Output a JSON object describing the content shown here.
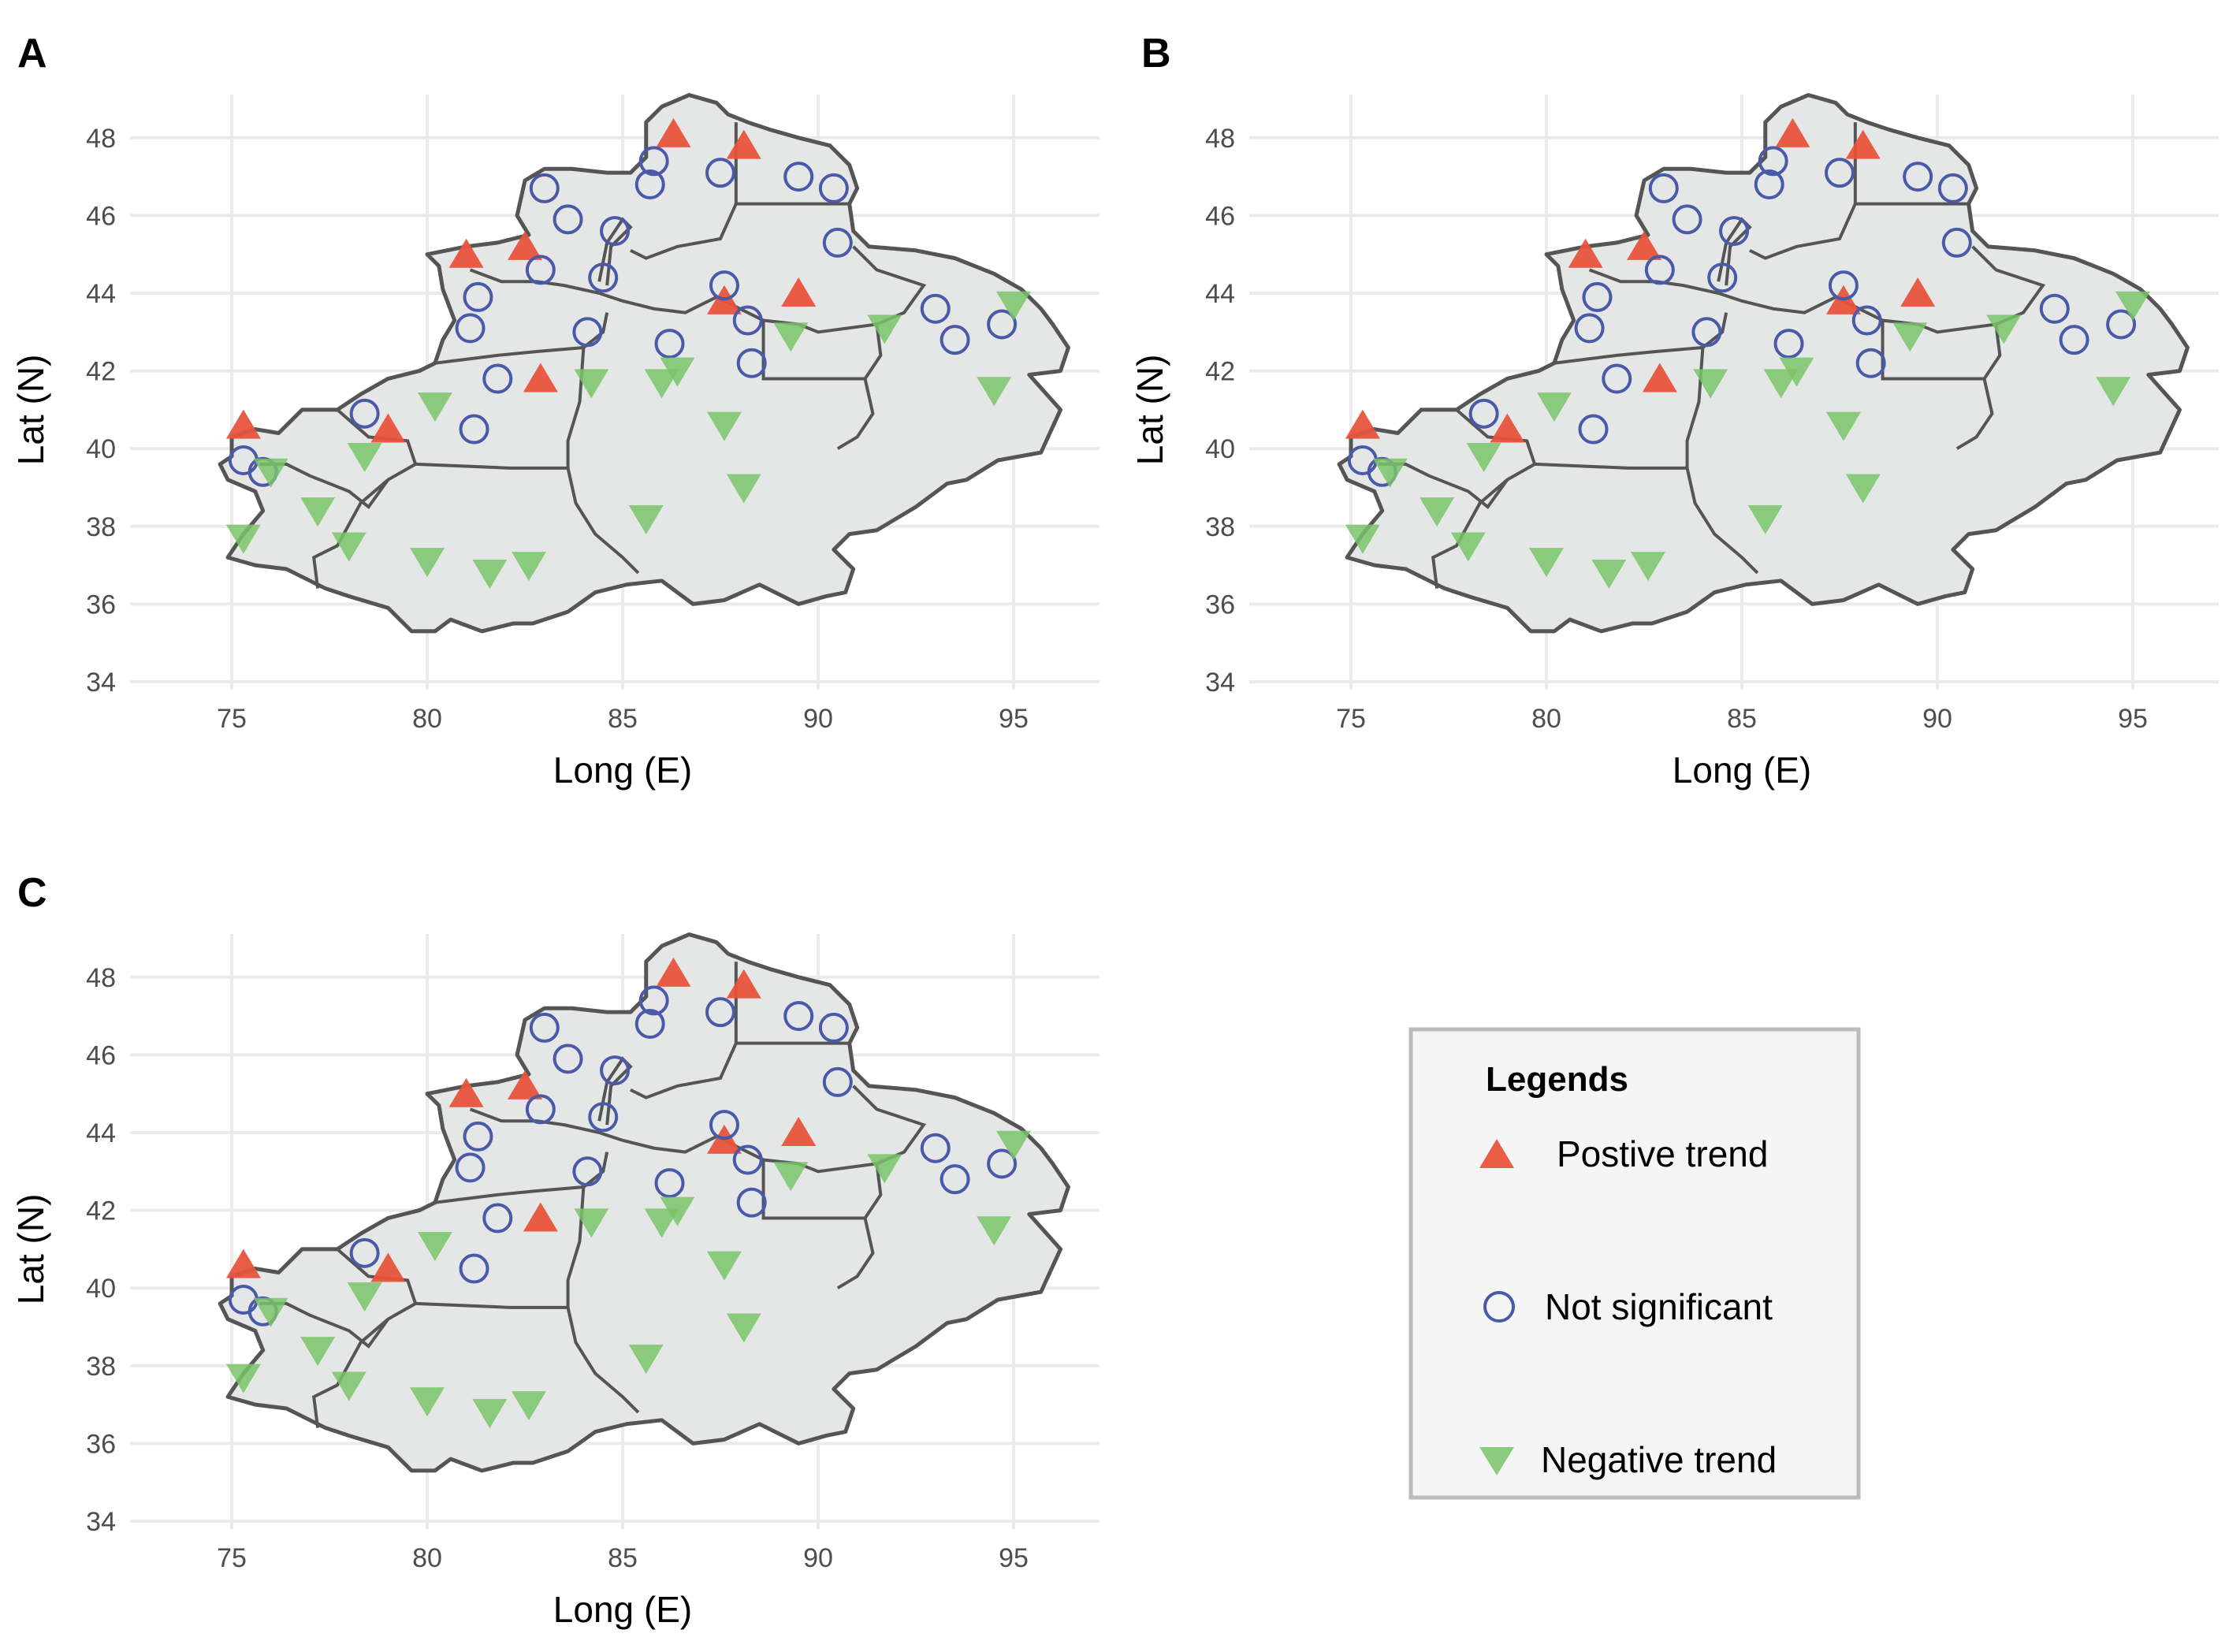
{
  "panels": [
    {
      "id": "A",
      "label": "A"
    },
    {
      "id": "B",
      "label": "B"
    },
    {
      "id": "C",
      "label": "C"
    }
  ],
  "axes": {
    "xlabel": "Long (E)",
    "ylabel": "Lat (N)",
    "x_ticks": [
      "75",
      "80",
      "85",
      "90",
      "95"
    ],
    "y_ticks": [
      "34",
      "36",
      "38",
      "40",
      "42",
      "44",
      "46",
      "48"
    ],
    "x_range": [
      72.5,
      97.5
    ],
    "y_range": [
      33.8,
      49.5
    ]
  },
  "legend": {
    "title": "Legends",
    "items": [
      {
        "key": "positive",
        "label": "Postive trend",
        "shape": "triangle-up",
        "color": "#e8543c"
      },
      {
        "key": "ns",
        "label": "Not significant",
        "shape": "circle-open",
        "color": "#4b5aa8"
      },
      {
        "key": "negative",
        "label": "Negative trend",
        "shape": "triangle-down",
        "color": "#7ac468"
      }
    ]
  },
  "chart_data": [
    {
      "type": "scatter",
      "panel": "A",
      "title": "",
      "xlabel": "Long (E)",
      "ylabel": "Lat (N)",
      "xlim": [
        72.5,
        97.5
      ],
      "ylim": [
        33.8,
        49.5
      ],
      "series": [
        {
          "name": "Postive trend",
          "x": [
            86.3,
            88.1,
            81.0,
            82.5,
            87.6,
            89.5,
            82.9,
            75.3,
            79.0
          ],
          "y": [
            48.1,
            47.8,
            45.0,
            45.2,
            43.8,
            44.0,
            41.8,
            40.6,
            40.5
          ]
        },
        {
          "name": "Not significant",
          "x": [
            85.8,
            85.7,
            87.5,
            89.5,
            90.4,
            83.0,
            83.6,
            84.8,
            82.9,
            84.5,
            90.5,
            81.3,
            81.1,
            84.1,
            87.6,
            88.2,
            86.2,
            88.3,
            93.0,
            93.5,
            94.7,
            81.8,
            78.4,
            81.2,
            75.3,
            75.8
          ],
          "y": [
            47.4,
            46.8,
            47.1,
            47.0,
            46.7,
            46.7,
            45.9,
            45.6,
            44.6,
            44.4,
            45.3,
            43.9,
            43.1,
            43.0,
            44.2,
            43.3,
            42.7,
            42.2,
            43.6,
            42.8,
            43.2,
            41.8,
            40.9,
            40.5,
            39.7,
            39.4
          ]
        },
        {
          "name": "Negative trend",
          "x": [
            95.0,
            91.7,
            89.3,
            94.5,
            86.4,
            86.0,
            84.2,
            80.2,
            78.4,
            87.6,
            88.1,
            85.6,
            76.0,
            77.2,
            75.3,
            78.0,
            80.0,
            81.6,
            82.6
          ],
          "y": [
            43.7,
            43.1,
            42.9,
            41.5,
            42.0,
            41.7,
            41.7,
            41.1,
            39.8,
            40.6,
            39.0,
            38.2,
            39.4,
            38.4,
            37.7,
            37.5,
            37.1,
            36.8,
            37.0
          ]
        }
      ]
    },
    {
      "type": "scatter",
      "panel": "B",
      "title": "",
      "xlabel": "Long (E)",
      "ylabel": "Lat (N)",
      "xlim": [
        72.5,
        97.5
      ],
      "ylim": [
        33.8,
        49.5
      ],
      "series": [
        {
          "name": "Postive trend",
          "x": [
            86.3,
            88.1,
            81.0,
            82.5,
            87.6,
            89.5,
            82.9,
            75.3,
            79.0
          ],
          "y": [
            48.1,
            47.8,
            45.0,
            45.2,
            43.8,
            44.0,
            41.8,
            40.6,
            40.5
          ]
        },
        {
          "name": "Not significant",
          "x": [
            85.8,
            85.7,
            87.5,
            89.5,
            90.4,
            83.0,
            83.6,
            84.8,
            82.9,
            84.5,
            90.5,
            81.3,
            81.1,
            84.1,
            87.6,
            88.2,
            86.2,
            88.3,
            93.0,
            93.5,
            94.7,
            81.8,
            78.4,
            81.2,
            75.3,
            75.8
          ],
          "y": [
            47.4,
            46.8,
            47.1,
            47.0,
            46.7,
            46.7,
            45.9,
            45.6,
            44.6,
            44.4,
            45.3,
            43.9,
            43.1,
            43.0,
            44.2,
            43.3,
            42.7,
            42.2,
            43.6,
            42.8,
            43.2,
            41.8,
            40.9,
            40.5,
            39.7,
            39.4
          ]
        },
        {
          "name": "Negative trend",
          "x": [
            95.0,
            91.7,
            89.3,
            94.5,
            86.4,
            86.0,
            84.2,
            80.2,
            78.4,
            87.6,
            88.1,
            85.6,
            76.0,
            77.2,
            75.3,
            78.0,
            80.0,
            81.6,
            82.6
          ],
          "y": [
            43.7,
            43.1,
            42.9,
            41.5,
            42.0,
            41.7,
            41.7,
            41.1,
            39.8,
            40.6,
            39.0,
            38.2,
            39.4,
            38.4,
            37.7,
            37.5,
            37.1,
            36.8,
            37.0
          ]
        }
      ]
    },
    {
      "type": "scatter",
      "panel": "C",
      "title": "",
      "xlabel": "Long (E)",
      "ylabel": "Lat (N)",
      "xlim": [
        72.5,
        97.5
      ],
      "ylim": [
        33.8,
        49.5
      ],
      "series": [
        {
          "name": "Postive trend",
          "x": [
            86.3,
            88.1,
            81.0,
            82.5,
            87.6,
            89.5,
            82.9,
            75.3,
            79.0
          ],
          "y": [
            48.1,
            47.8,
            45.0,
            45.2,
            43.8,
            44.0,
            41.8,
            40.6,
            40.5
          ]
        },
        {
          "name": "Not significant",
          "x": [
            85.8,
            85.7,
            87.5,
            89.5,
            90.4,
            83.0,
            83.6,
            84.8,
            82.9,
            84.5,
            90.5,
            81.3,
            81.1,
            84.1,
            87.6,
            88.2,
            86.2,
            88.3,
            93.0,
            93.5,
            94.7,
            81.8,
            78.4,
            81.2,
            75.3,
            75.8
          ],
          "y": [
            47.4,
            46.8,
            47.1,
            47.0,
            46.7,
            46.7,
            45.9,
            45.6,
            44.6,
            44.4,
            45.3,
            43.9,
            43.1,
            43.0,
            44.2,
            43.3,
            42.7,
            42.2,
            43.6,
            42.8,
            43.2,
            41.8,
            40.9,
            40.5,
            39.7,
            39.4
          ]
        },
        {
          "name": "Negative trend",
          "x": [
            95.0,
            91.7,
            89.3,
            94.5,
            86.4,
            86.0,
            84.2,
            80.2,
            78.4,
            87.6,
            88.1,
            85.6,
            76.0,
            77.2,
            75.3,
            78.0,
            80.0,
            81.6,
            82.6
          ],
          "y": [
            43.7,
            43.1,
            42.9,
            41.5,
            42.0,
            41.7,
            41.7,
            41.1,
            39.8,
            40.6,
            39.0,
            38.2,
            39.4,
            38.4,
            37.7,
            37.5,
            37.1,
            36.8,
            37.0
          ]
        }
      ]
    }
  ]
}
